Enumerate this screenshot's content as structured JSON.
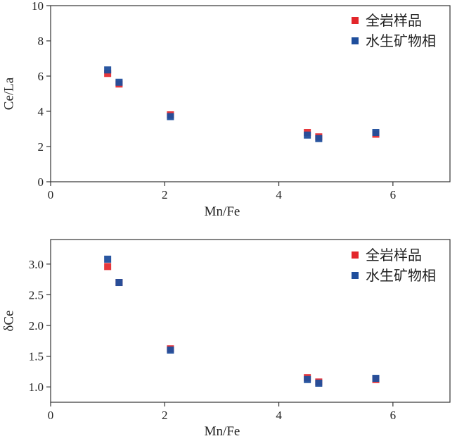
{
  "chart_data": [
    {
      "type": "scatter",
      "xlabel": "Mn/Fe",
      "ylabel": "Ce/La",
      "xlim": [
        0,
        7
      ],
      "ylim": [
        0,
        10
      ],
      "xticks": [
        0,
        2,
        4,
        6
      ],
      "yticks": [
        0,
        2,
        4,
        6,
        8,
        10
      ],
      "ytick_decimals": 0,
      "legend_position": "top-right",
      "grid": false,
      "series": [
        {
          "name": "全岩样品",
          "color": "#e3262b",
          "marker": "square",
          "x": [
            1.0,
            1.2,
            2.1,
            4.5,
            4.7,
            5.7
          ],
          "y": [
            6.15,
            5.55,
            3.8,
            2.8,
            2.55,
            2.7
          ]
        },
        {
          "name": "水生矿物相",
          "color": "#1f4e9c",
          "marker": "square",
          "x": [
            1.0,
            1.2,
            2.1,
            4.5,
            4.7,
            5.7
          ],
          "y": [
            6.35,
            5.65,
            3.7,
            2.65,
            2.45,
            2.8
          ]
        }
      ]
    },
    {
      "type": "scatter",
      "xlabel": "Mn/Fe",
      "ylabel": "δCe",
      "xlim": [
        0,
        7
      ],
      "ylim": [
        0.75,
        3.4
      ],
      "xticks": [
        0,
        2,
        4,
        6
      ],
      "yticks": [
        1.0,
        1.5,
        2.0,
        2.5,
        3.0
      ],
      "ytick_decimals": 1,
      "legend_position": "top-right",
      "grid": false,
      "series": [
        {
          "name": "全岩样品",
          "color": "#e3262b",
          "marker": "square",
          "x": [
            1.0,
            1.2,
            2.1,
            4.5,
            4.7,
            5.7
          ],
          "y": [
            2.96,
            2.7,
            1.62,
            1.15,
            1.08,
            1.12
          ]
        },
        {
          "name": "水生矿物相",
          "color": "#1f4e9c",
          "marker": "square",
          "x": [
            1.0,
            1.2,
            2.1,
            4.5,
            4.7,
            5.7
          ],
          "y": [
            3.08,
            2.7,
            1.6,
            1.12,
            1.06,
            1.14
          ]
        }
      ]
    }
  ]
}
